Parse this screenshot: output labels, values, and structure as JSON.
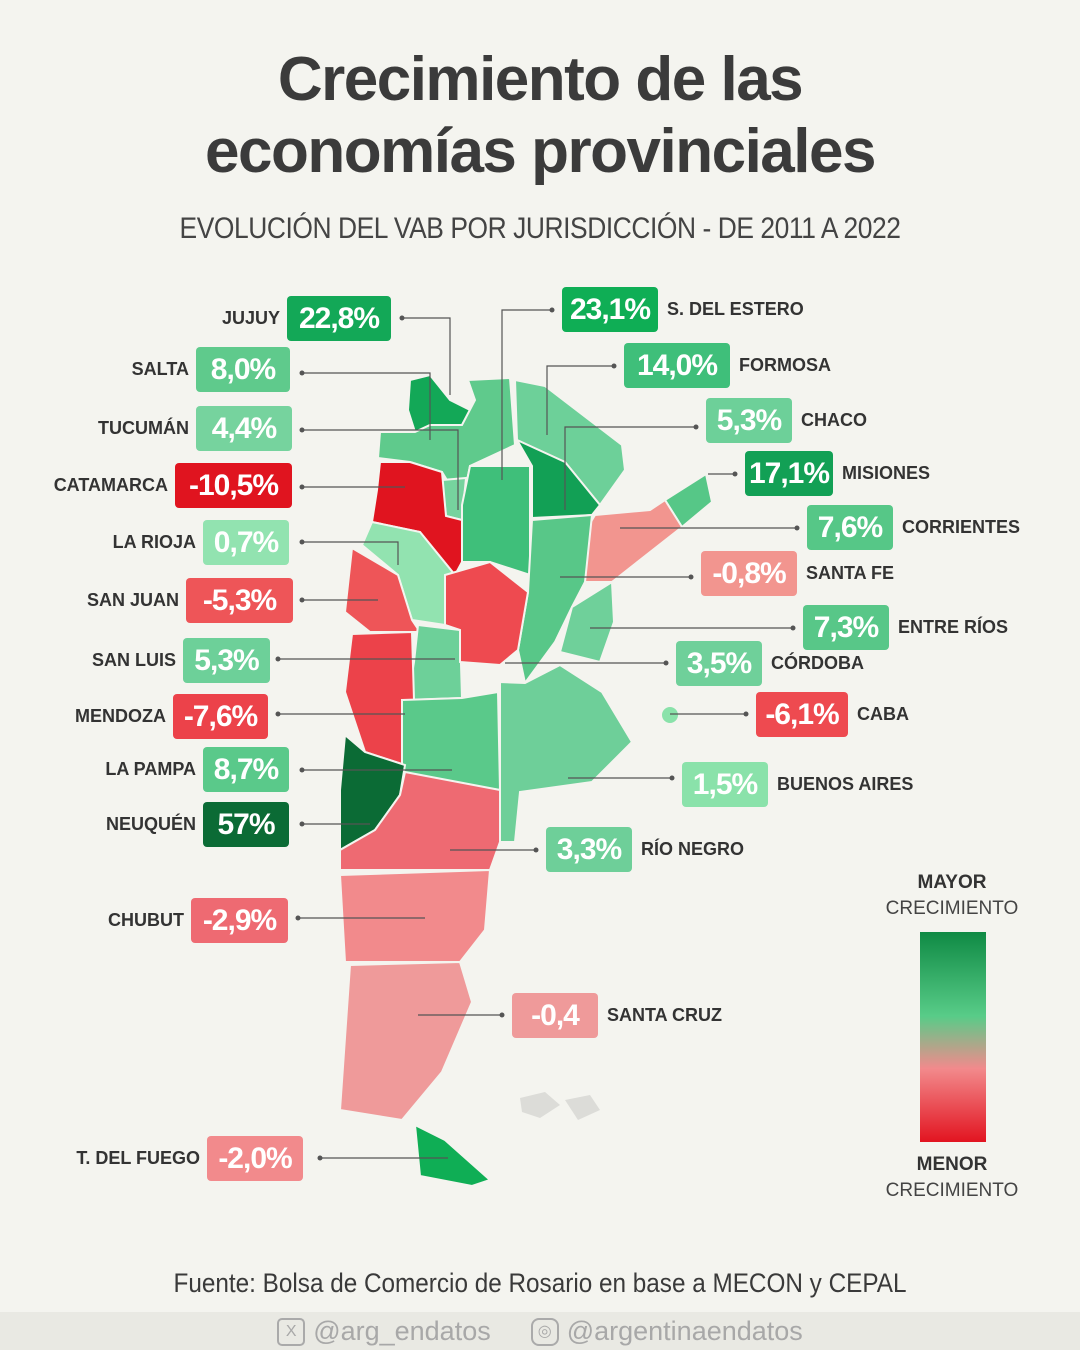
{
  "header": {
    "title_line1": "Crecimiento de las",
    "title_line2": "economías provinciales",
    "subtitle": "EVOLUCIÓN DEL VAB POR JURISDICCIÓN - DE 2011 A 2022"
  },
  "provinces": [
    {
      "name": "JUJUY",
      "value": "22,8%",
      "color": "#13a857"
    },
    {
      "name": "SALTA",
      "value": "8,0%",
      "color": "#5fca8c"
    },
    {
      "name": "TUCUMÁN",
      "value": "4,4%",
      "color": "#76d39e"
    },
    {
      "name": "CATAMARCA",
      "value": "-10,5%",
      "color": "#e0141f"
    },
    {
      "name": "LA RIOJA",
      "value": "0,7%",
      "color": "#92e3b0"
    },
    {
      "name": "SAN JUAN",
      "value": "-5,3%",
      "color": "#ee5558"
    },
    {
      "name": "SAN LUIS",
      "value": "5,3%",
      "color": "#6dd099"
    },
    {
      "name": "MENDOZA",
      "value": "-7,6%",
      "color": "#ec424a"
    },
    {
      "name": "LA PAMPA",
      "value": "8,7%",
      "color": "#5ac98a"
    },
    {
      "name": "NEUQUÉN",
      "value": "57%",
      "color": "#0b6b35"
    },
    {
      "name": "CHUBUT",
      "value": "-2,9%",
      "color": "#ee6a72"
    },
    {
      "name": "T. DEL FUEGO",
      "value": "-2,0%",
      "color": "#f28a8c"
    },
    {
      "name": "S. DEL ESTERO",
      "value": "23,1%",
      "color": "#0fae55"
    },
    {
      "name": "FORMOSA",
      "value": "14,0%",
      "color": "#3fbf7a"
    },
    {
      "name": "CHACO",
      "value": "5,3%",
      "color": "#6dd099"
    },
    {
      "name": "MISIONES",
      "value": "17,1%",
      "color": "#12a055"
    },
    {
      "name": "CORRIENTES",
      "value": "7,6%",
      "color": "#56c787"
    },
    {
      "name": "SANTA FE",
      "value": "-0,8%",
      "color": "#f2958f"
    },
    {
      "name": "ENTRE RÍOS",
      "value": "7,3%",
      "color": "#58c788"
    },
    {
      "name": "CÓRDOBA",
      "value": "3,5%",
      "color": "#6fd09a"
    },
    {
      "name": "CABA",
      "value": "-6,1%",
      "color": "#ee4a50"
    },
    {
      "name": "BUENOS AIRES",
      "value": "1,5%",
      "color": "#8ae2aa"
    },
    {
      "name": "RÍO NEGRO",
      "value": "3,3%",
      "color": "#6ecf99"
    },
    {
      "name": "SANTA CRUZ",
      "value": "-0,4",
      "color": "#ef9a9a"
    }
  ],
  "legend": {
    "top_bold": "MAYOR",
    "top": "CRECIMIENTO",
    "bottom_bold": "MENOR",
    "bottom": "CRECIMIENTO",
    "color_high": "#0f8a44",
    "color_low": "#e21420"
  },
  "source": "Fuente: Bolsa de Comercio de Rosario en base a MECON y CEPAL",
  "footer": {
    "twitter": "@arg_endatos",
    "instagram": "@argentinaendatos",
    "twitter_icon": "x-icon",
    "instagram_icon": "instagram-icon"
  }
}
